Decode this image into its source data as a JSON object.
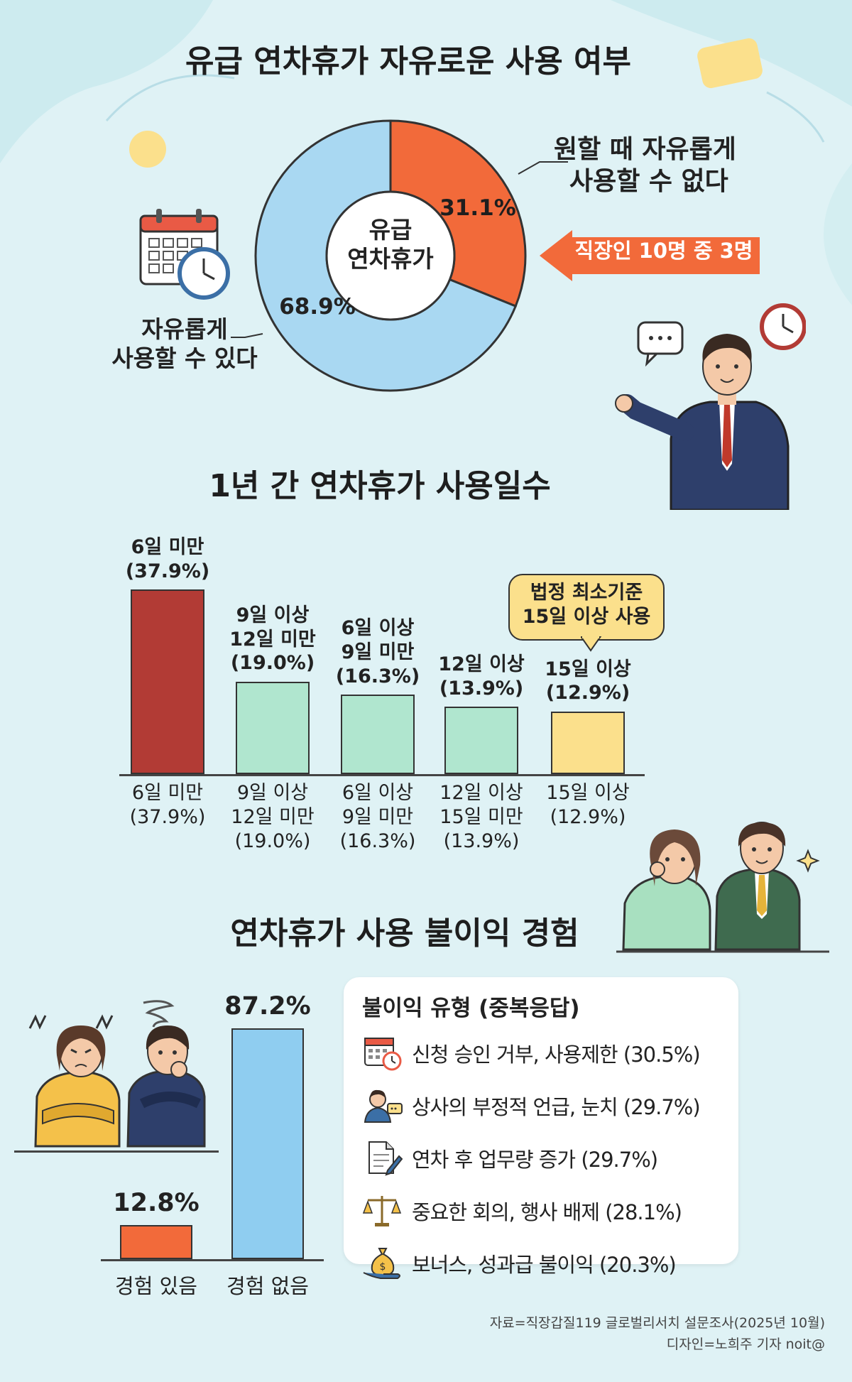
{
  "colors": {
    "background": "#dff2f5",
    "orange": "#f26a3a",
    "light_blue": "#a9d8f2",
    "dark_red": "#b23b35",
    "mint": "#b0e6cf",
    "yellow": "#fbe08c",
    "sky_bar": "#8fcdf0"
  },
  "section1": {
    "title": "유급 연차휴가 자유로운 사용 여부",
    "center_label_1": "유급",
    "center_label_2": "연차휴가",
    "label_cannot_1": "원할 때 자유롭게",
    "label_cannot_2": "사용할 수 없다",
    "label_can_1": "자유롭게",
    "label_can_2": "사용할 수 있다",
    "callout": "직장인 10명 중 3명"
  },
  "section2": {
    "title": "1년 간 연차휴가 사용일수",
    "note_1": "법정 최소기준",
    "note_2": "15일 이상 사용"
  },
  "section3": {
    "title": "연차휴가 사용 불이익 경험",
    "panel_title": "불이익 유형 (중복응답)",
    "items": [
      {
        "label": "신청 승인 거부, 사용제한 (30.5%)",
        "icon": "calendar-clock-icon"
      },
      {
        "label": "상사의 부정적 언급, 눈치 (29.7%)",
        "icon": "boss-speech-icon"
      },
      {
        "label": "연차 후 업무량 증가 (29.7%)",
        "icon": "document-pen-icon"
      },
      {
        "label": "중요한 회의, 행사 배제 (28.1%)",
        "icon": "scale-icon"
      },
      {
        "label": "보너스, 성과급 불이익 (20.3%)",
        "icon": "money-bag-hand-icon"
      }
    ]
  },
  "footer": {
    "source": "자료=직장갑질119 글로벌리서치 설문조사(2025년 10월)",
    "design": "디자인=노희주 기자 noit@"
  },
  "chart_data": [
    {
      "type": "pie",
      "title": "유급 연차휴가 자유로운 사용 여부",
      "slices": [
        {
          "label": "원할 때 자유롭게 사용할 수 없다",
          "value": 31.1,
          "value_label": "31.1%",
          "color": "#f26a3a"
        },
        {
          "label": "자유롭게 사용할 수 있다",
          "value": 68.9,
          "value_label": "68.9%",
          "color": "#a9d8f2"
        }
      ]
    },
    {
      "type": "bar",
      "title": "1년 간 연차휴가 사용일수",
      "categories": [
        "6일 미만",
        "9일 이상 12일 미만",
        "6일 이상 9일 미만",
        "12일 이상 15일 미만",
        "15일 이상"
      ],
      "values": [
        37.9,
        19.0,
        16.3,
        13.9,
        12.9
      ],
      "top_labels": [
        [
          "6일 미만",
          "(37.9%)"
        ],
        [
          "9일 이상",
          "12일 미만",
          "(19.0%)"
        ],
        [
          "6일 이상",
          "9일 미만",
          "(16.3%)"
        ],
        [
          "12일 이상",
          "(13.9%)"
        ],
        [
          "15일 이상",
          "(12.9%)"
        ]
      ],
      "bottom_labels": [
        [
          "6일 미만",
          "(37.9%)"
        ],
        [
          "9일 이상",
          "12일 미만",
          "(19.0%)"
        ],
        [
          "6일 이상",
          "9일 미만",
          "(16.3%)"
        ],
        [
          "12일 이상",
          "15일 미만",
          "(13.9%)"
        ],
        [
          "15일 이상",
          "(12.9%)"
        ]
      ],
      "colors": [
        "#b23b35",
        "#b0e6cf",
        "#b0e6cf",
        "#b0e6cf",
        "#fbe08c"
      ],
      "ylim": [
        0,
        40
      ]
    },
    {
      "type": "bar",
      "title": "연차휴가 사용 불이익 경험",
      "categories": [
        "경험 있음",
        "경험 없음"
      ],
      "values": [
        12.8,
        87.2
      ],
      "value_labels": [
        "12.8%",
        "87.2%"
      ],
      "colors": [
        "#f26a3a",
        "#8fcdf0"
      ],
      "ylim": [
        0,
        90
      ]
    }
  ]
}
